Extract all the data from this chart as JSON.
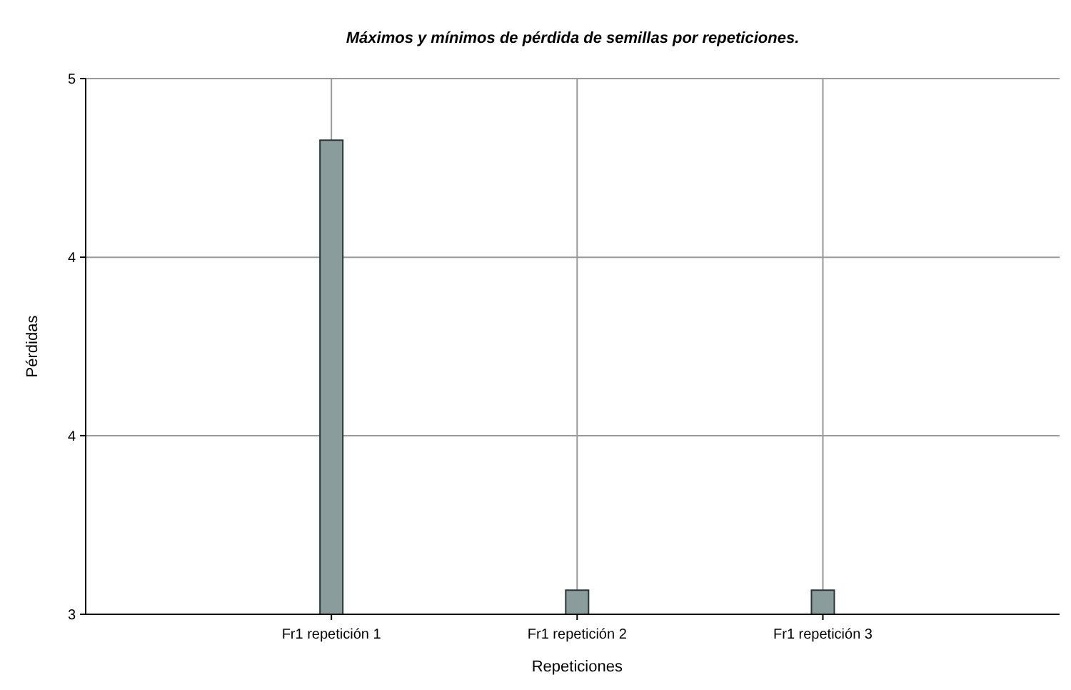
{
  "chart_data": {
    "type": "bar",
    "title": "Máximos y mínimos de pérdida de semillas por repeticiones.",
    "xlabel": "Repeticiones",
    "ylabel": "Pérdidas",
    "categories": [
      "Fr1 repetición 1",
      "Fr1 repetición 2",
      "Fr1 repetición 3"
    ],
    "values": [
      4.77,
      3.09,
      3.09
    ],
    "color": "#8a9c9c",
    "ylim": [
      3,
      5
    ],
    "yticks": [
      {
        "value": 3,
        "label": "3"
      },
      {
        "value": 3.667,
        "label": "4"
      },
      {
        "value": 4.333,
        "label": "4"
      },
      {
        "value": 5,
        "label": "5"
      }
    ],
    "grid": true
  }
}
